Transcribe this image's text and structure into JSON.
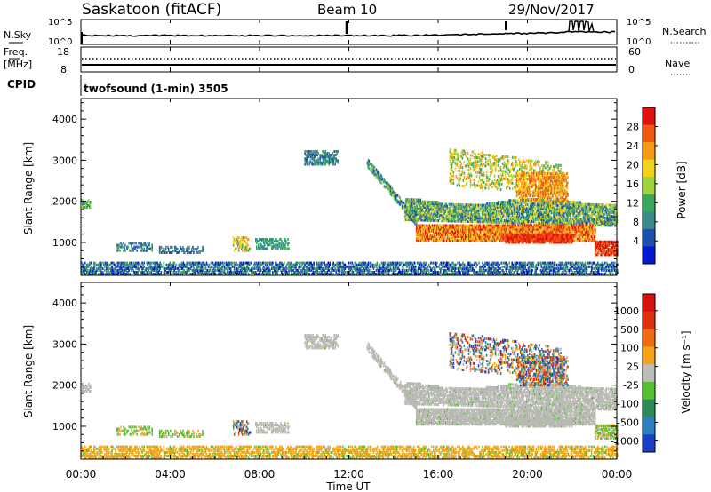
{
  "header": {
    "station": "Saskatoon (fitACF)",
    "beam": "Beam 10",
    "date": "29/Nov/2017"
  },
  "colors": {
    "axis": "#000000",
    "gray_scatter": "#b9b9b4"
  },
  "panels": {
    "noise": {
      "left_label": "N.Sky",
      "right_label": "N.Search",
      "left_ticks": [
        "10^5",
        "10^0"
      ],
      "right_ticks": [
        "10^5",
        "10^0"
      ]
    },
    "freq": {
      "left_label": "Freq.",
      "left_unit": "[MHz]",
      "right_label": "Nave",
      "left_ticks": [
        "18",
        "8"
      ],
      "right_ticks": [
        "60",
        "0"
      ]
    },
    "cpid": {
      "label": "CPID",
      "text": "twofsound (1-min) 3505"
    }
  },
  "chart_data": [
    {
      "type": "heatmap",
      "name": "power",
      "ylabel": "Slant Range [km]",
      "ylim": [
        200,
        4500
      ],
      "yticks": [
        "4000",
        "3000",
        "2000",
        "1000"
      ],
      "colorbar": {
        "label": "Power [dB]",
        "ticks": [
          "28",
          "24",
          "20",
          "16",
          "12",
          "8",
          "4"
        ],
        "colors": [
          "#0018d6",
          "#1d4fb0",
          "#3a8a8a",
          "#3ba75a",
          "#9ed23c",
          "#f2d21c",
          "#f59a12",
          "#ef5a10",
          "#e01010"
        ]
      }
    },
    {
      "type": "heatmap",
      "name": "velocity",
      "ylabel": "Slant Range [km]",
      "ylim": [
        200,
        4500
      ],
      "yticks": [
        "4000",
        "3000",
        "2000",
        "1000"
      ],
      "colorbar": {
        "label": "Velocity [m s⁻¹]",
        "ticks": [
          "1000",
          "500",
          "100",
          "25",
          "-25",
          "-100",
          "-500",
          "-1000"
        ],
        "colors": [
          "#1b3fc7",
          "#2e7fbf",
          "#2e8b57",
          "#55c02e",
          "#bdbdb8",
          "#f3a417",
          "#ef6a10",
          "#e03010",
          "#d81010"
        ]
      }
    }
  ],
  "xaxis": {
    "label": "Time UT",
    "ticks": [
      "00:00",
      "04:00",
      "08:00",
      "12:00",
      "16:00",
      "20:00",
      "00:00"
    ]
  }
}
